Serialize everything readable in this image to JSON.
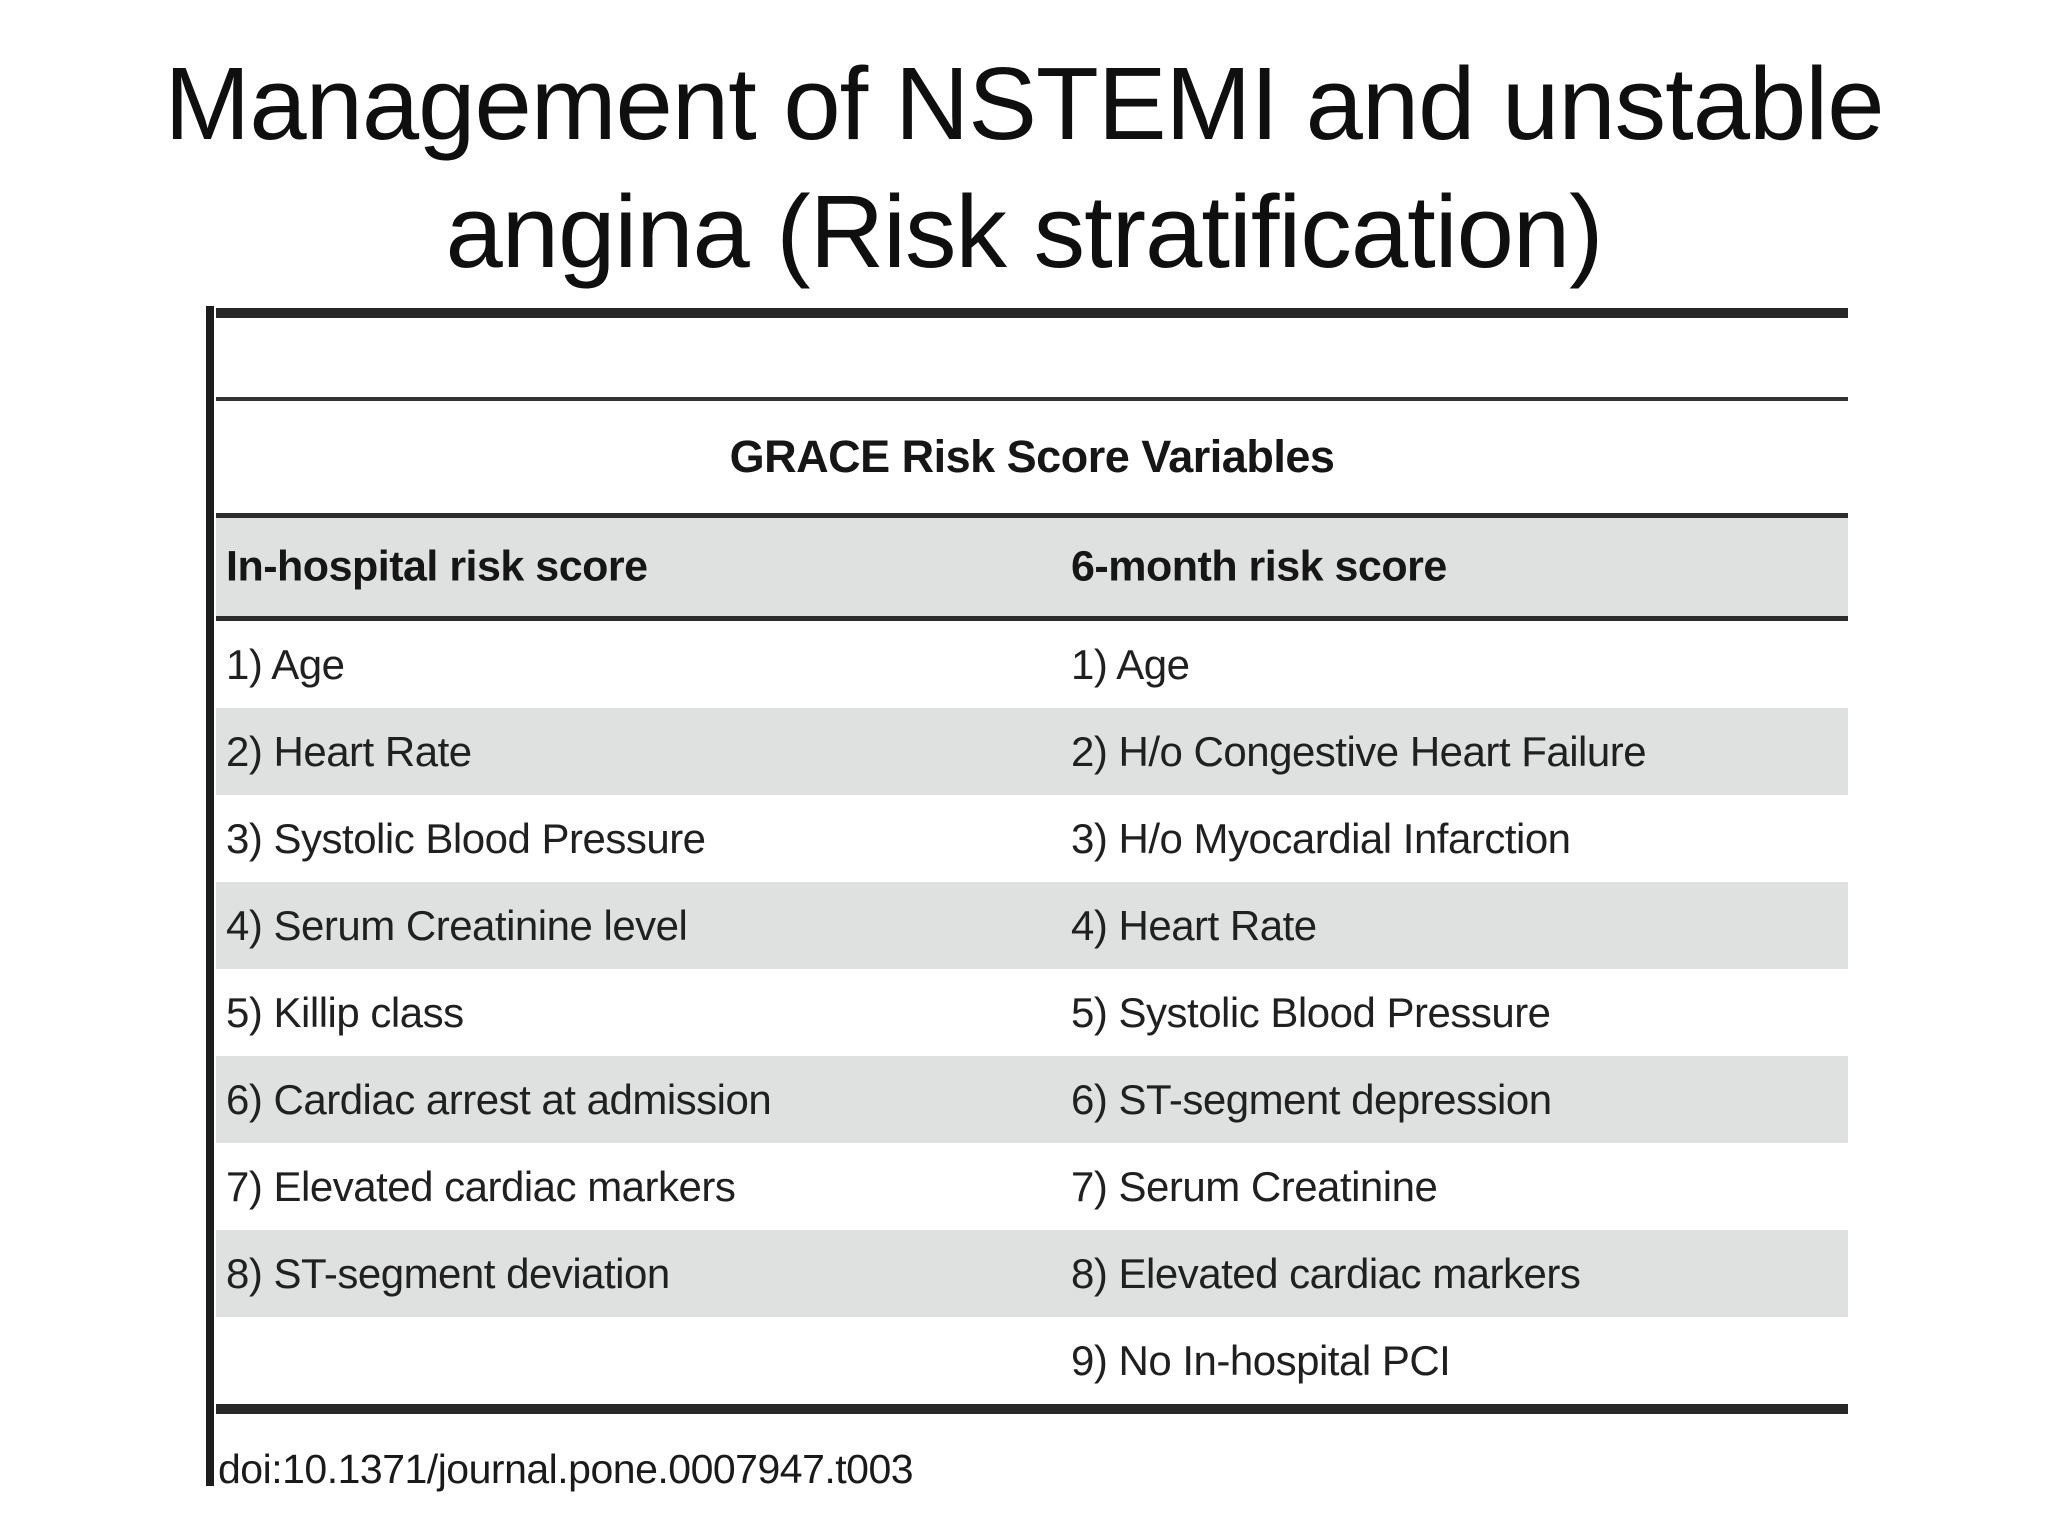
{
  "slide": {
    "title_line1": "Management of NSTEMI and unstable",
    "title_line2": "angina (Risk stratification)"
  },
  "figure": {
    "caption": "GRACE Risk Score Variables",
    "col1_header": "In-hospital risk score",
    "col2_header": "6-month risk score",
    "rows": [
      {
        "col1": "1) Age",
        "col2": "1) Age"
      },
      {
        "col1": "2) Heart Rate",
        "col2": "2) H/o Congestive Heart Failure"
      },
      {
        "col1": "3) Systolic Blood Pressure",
        "col2": "3) H/o Myocardial Infarction"
      },
      {
        "col1": "4) Serum Creatinine level",
        "col2": "4) Heart Rate"
      },
      {
        "col1": "5) Killip class",
        "col2": "5) Systolic Blood Pressure"
      },
      {
        "col1": "6) Cardiac arrest at admission",
        "col2": "6) ST-segment depression"
      },
      {
        "col1": "7) Elevated cardiac markers",
        "col2": "7) Serum Creatinine"
      },
      {
        "col1": "8) ST-segment deviation",
        "col2": "8) Elevated cardiac markers"
      },
      {
        "col1": "",
        "col2": "9) No In-hospital PCI"
      }
    ],
    "doi": "doi:10.1371/journal.pone.0007947.t003"
  },
  "colors": {
    "background": "#ffffff",
    "row_stripe": "#dfe0e0",
    "rule_dark": "#282828",
    "text": "#1b1b1b"
  }
}
